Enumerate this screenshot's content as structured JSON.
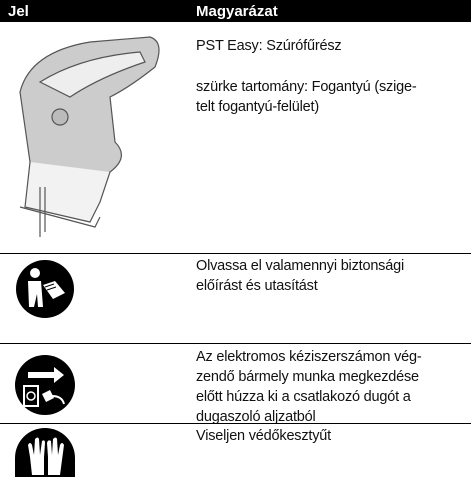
{
  "table": {
    "header": [
      "Jel",
      "Magyarázat"
    ],
    "rows": [
      {
        "lines": [
          "PST Easy: Szúrófűrész"
        ],
        "lines2": [
          "szürke tartomány: Fogantyú (szige-",
          "telt fogantyú-felület)"
        ]
      },
      {
        "lines": [
          "Olvassa el valamennyi biztonsági",
          "előírást és utasítást"
        ]
      },
      {
        "lines": [
          "Az elektromos kéziszerszámon vég-",
          "zendő bármely munka megkezdése",
          "előtt húzza ki a csatlakozó dugót a",
          "dugaszoló aljzatból"
        ]
      },
      {
        "lines": [
          "Viseljen védőkesztyűt"
        ]
      }
    ]
  }
}
